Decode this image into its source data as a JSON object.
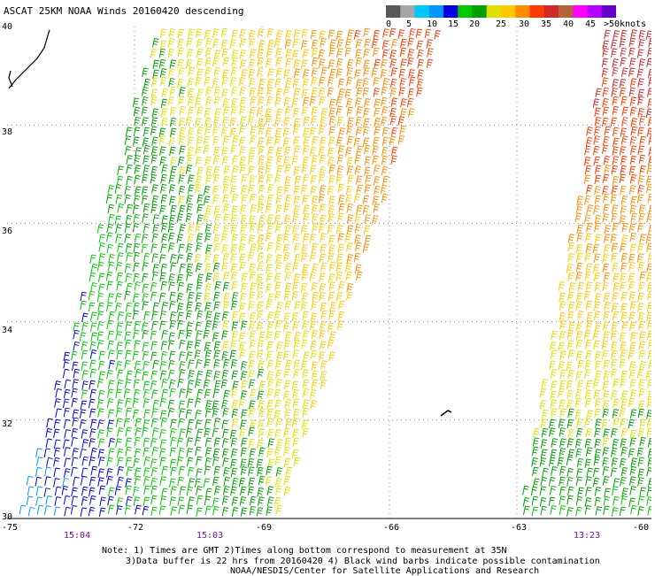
{
  "title": "ASCAT 25KM NOAA Winds 20160420 descending",
  "colorbar": {
    "colors": [
      "#595959",
      "#a6a6a6",
      "#00c8ff",
      "#0096ff",
      "#0000e0",
      "#00c800",
      "#00a000",
      "#e0e000",
      "#ffc800",
      "#ff8c00",
      "#ff3c00",
      "#d22828",
      "#b4643c",
      "#ff00ff",
      "#b400ff",
      "#6400c8"
    ],
    "labels": [
      "0",
      "5",
      "10",
      "15",
      "20",
      "25",
      "30",
      "35",
      "40",
      "45",
      ">50"
    ],
    "units": "knots"
  },
  "axes": {
    "lat_labels": [
      "40",
      "38",
      "36",
      "34",
      "32",
      "30"
    ],
    "lon_labels": [
      "-75",
      "-72",
      "-69",
      "-66",
      "-63",
      "-60"
    ]
  },
  "pass_times": [
    "15:04",
    "15:03",
    "13:23"
  ],
  "notes": [
    "Note: 1) Times are GMT 2)Times along bottom correspond to measurement at 35N",
    "3)Data buffer is 22 hrs from 20160420 4) Black wind barbs indicate possible contamination",
    "NOAA/NESDIS/Center for Satellite Applications and Research"
  ],
  "chart_data": {
    "type": "wind-barb map",
    "lat_range": [
      30,
      40
    ],
    "lon_range": [
      -75,
      -60
    ],
    "grid": true,
    "swaths": [
      {
        "time": "15:04",
        "speed_knots_range": [
          5,
          25
        ]
      },
      {
        "time": "15:03",
        "speed_knots_range": [
          15,
          35
        ]
      },
      {
        "time": "13:23",
        "speed_knots_range": [
          15,
          35
        ]
      }
    ]
  }
}
